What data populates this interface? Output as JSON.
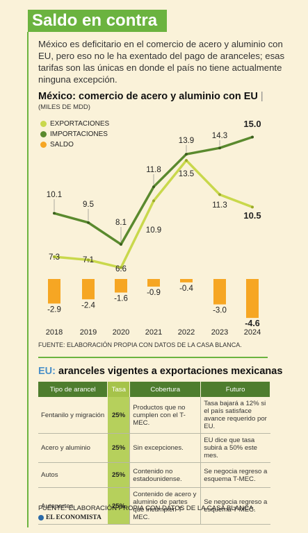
{
  "header": {
    "title": "Saldo en contra",
    "lead": "México es deficitario en el comercio de acero y aluminio con EU, pero eso no le ha exentado del pago de aranceles; esas tarifas son las únicas en donde el país no tiene actualmente ninguna excepción."
  },
  "chart_data": {
    "type": "line",
    "title": "México: comercio de acero y aluminio con EU",
    "subtitle": "(MILES DE MDD)",
    "x": [
      "2018",
      "2019",
      "2020",
      "2021",
      "2022",
      "2023",
      "2024"
    ],
    "series": [
      {
        "name": "EXPORTACIONES",
        "type": "line",
        "color": "#c9d84c",
        "values": [
          7.3,
          7.1,
          6.6,
          10.9,
          13.5,
          11.3,
          10.5
        ]
      },
      {
        "name": "IMPORTACIONES",
        "type": "line",
        "color": "#5a8a2e",
        "values": [
          10.1,
          9.5,
          8.1,
          11.8,
          13.9,
          14.3,
          15.0
        ]
      },
      {
        "name": "SALDO",
        "type": "bar",
        "color": "#f6a623",
        "values": [
          -2.9,
          -2.4,
          -1.6,
          -0.9,
          -0.4,
          -3.0,
          -4.6
        ]
      }
    ],
    "labels": {
      "exports": [
        "7.3",
        "7.1",
        "6.6",
        "10.9",
        "13.5",
        "11.3",
        "10.5"
      ],
      "imports": [
        "10.1",
        "9.5",
        "8.1",
        "11.8",
        "13.9",
        "14.3",
        "15.0"
      ],
      "saldo": [
        "-2.9",
        "-2.4",
        "-1.6",
        "-0.9",
        "-0.4",
        "-3.0",
        "-4.6"
      ]
    },
    "legend_position": "top-left",
    "grid": false
  },
  "source1": "FUENTE: ELABORACIÓN PROPIA CON DATOS DE LA CASA BLANCA.",
  "table": {
    "title_prefix": "EU:",
    "title_rest": " aranceles vigentes a exportaciones mexicanas",
    "headers": [
      "Tipo de arancel",
      "Tasa",
      "Cobertura",
      "Futuro"
    ],
    "rows": [
      {
        "tipo": "Fentanilo y migración",
        "tasa": "25%",
        "cobertura": "Productos que no cumplen con el T-MEC.",
        "futuro": "Tasa bajará a 12% si el país satisface avance requerido por EU."
      },
      {
        "tipo": "Acero y aluminio",
        "tasa": "25%",
        "cobertura": "Sin excepciones.",
        "futuro": "EU dice que tasa subirá a 50% este mes."
      },
      {
        "tipo": "Autos",
        "tasa": "25%",
        "cobertura": "Contenido no estadounidense.",
        "futuro": "Se negocia regreso a esquema T-MEC."
      },
      {
        "tipo": "Autopartes",
        "tasa": "25%",
        "cobertura": "Contenido de acero y aluminio de partes que incumplen T-MEC.",
        "futuro": "Se negocia regreso a esquema T-MEC."
      }
    ]
  },
  "source2": "FUENTE: ELABORACIÓN PROPIA CON DATOS DE LA CASA BLANCA.",
  "logo": "EL ECONOMISTA",
  "colors": {
    "background": "#faf2d9",
    "title_band": "#6bb33f",
    "exports": "#c9d84c",
    "imports": "#5a8a2e",
    "saldo": "#f6a623",
    "table_header": "#4e7d2e",
    "table_rate": "#b6d05c",
    "accent_blue": "#4a90c9"
  }
}
